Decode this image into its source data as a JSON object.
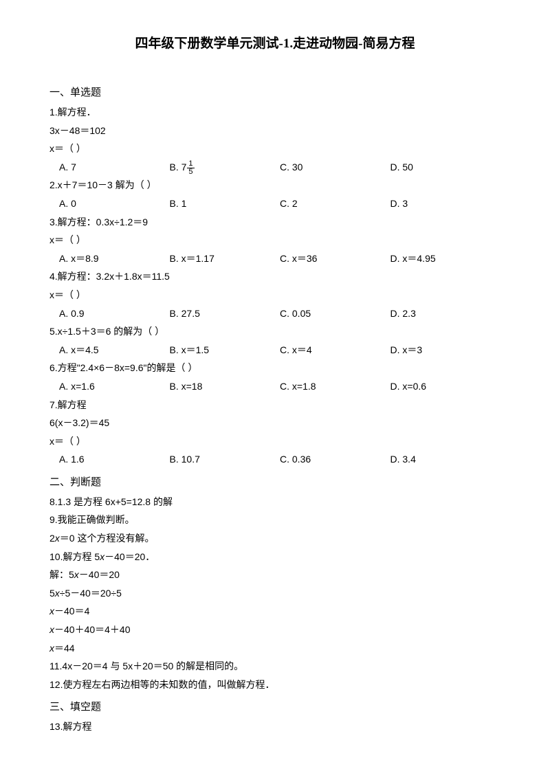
{
  "title": "四年级下册数学单元测试-1.走进动物园-简易方程",
  "sections": {
    "s1": "一、单选题",
    "s2": "二、判断题",
    "s3": "三、填空题"
  },
  "q1": {
    "l1": "1.解方程．",
    "l2": "3x－48＝102",
    "l3": "x＝（   ）",
    "a": "A. 7",
    "b_prefix": "B. 7",
    "b_num": "1",
    "b_den": "5",
    "c": "C. 30",
    "d": "D. 50"
  },
  "q2": {
    "l1": "2.x＋7＝10－3 解为（     ）",
    "a": "A. 0",
    "b": "B. 1",
    "c": "C. 2",
    "d": "D. 3"
  },
  "q3": {
    "l1": "3.解方程：0.3x÷1.2＝9",
    "l2": "x＝（   ）",
    "a": "A. x＝8.9",
    "b": "B. x＝1.17",
    "c": "C. x＝36",
    "d": "D. x＝4.95"
  },
  "q4": {
    "l1": "4.解方程：3.2x＋1.8x＝11.5",
    "l2": "x＝（   ）",
    "a": "A. 0.9",
    "b": "B. 27.5",
    "c": "C. 0.05",
    "d": "D. 2.3"
  },
  "q5": {
    "l1": "5.x÷1.5＋3＝6 的解为（     ）",
    "a": "A. x＝4.5",
    "b": "B. x＝1.5",
    "c": "C. x＝4",
    "d": "D. x＝3"
  },
  "q6": {
    "l1": "6.方程\"2.4×6－8x=9.6\"的解是（    ）",
    "a": "A. x=1.6",
    "b": "B. x=18",
    "c": "C. x=1.8",
    "d": "D. x=0.6"
  },
  "q7": {
    "l1": "7.解方程",
    "l2": "6(x－3.2)＝45",
    "l3": "x＝（   ）",
    "a": "A. 1.6",
    "b": "B. 10.7",
    "c": "C. 0.36",
    "d": "D. 3.4"
  },
  "q8": "8.1.3 是方程 6x+5=12.8 的解",
  "q9": {
    "l1": "9.我能正确做判断。",
    "l2_a": "2",
    "l2_b": "x",
    "l2_c": "＝0 这个方程没有解。"
  },
  "q10": {
    "l1_a": "10.解方程 5",
    "l1_b": "x",
    "l1_c": "－40＝20．",
    "l2_a": "解：5",
    "l2_b": "x",
    "l2_c": "－40＝20",
    "l3_a": "5",
    "l3_b": "x",
    "l3_c": "÷5－40＝20÷5",
    "l4_a": "x",
    "l4_b": "－40＝4",
    "l5_a": "x",
    "l5_b": "－40＋40＝4＋40",
    "l6_a": "x",
    "l6_b": "＝44"
  },
  "q11": "11.4x－20＝4 与 5x＋20＝50 的解是相同的。",
  "q12": "12.使方程左右两边相等的未知数的值，叫做解方程．",
  "q13": "13.解方程"
}
